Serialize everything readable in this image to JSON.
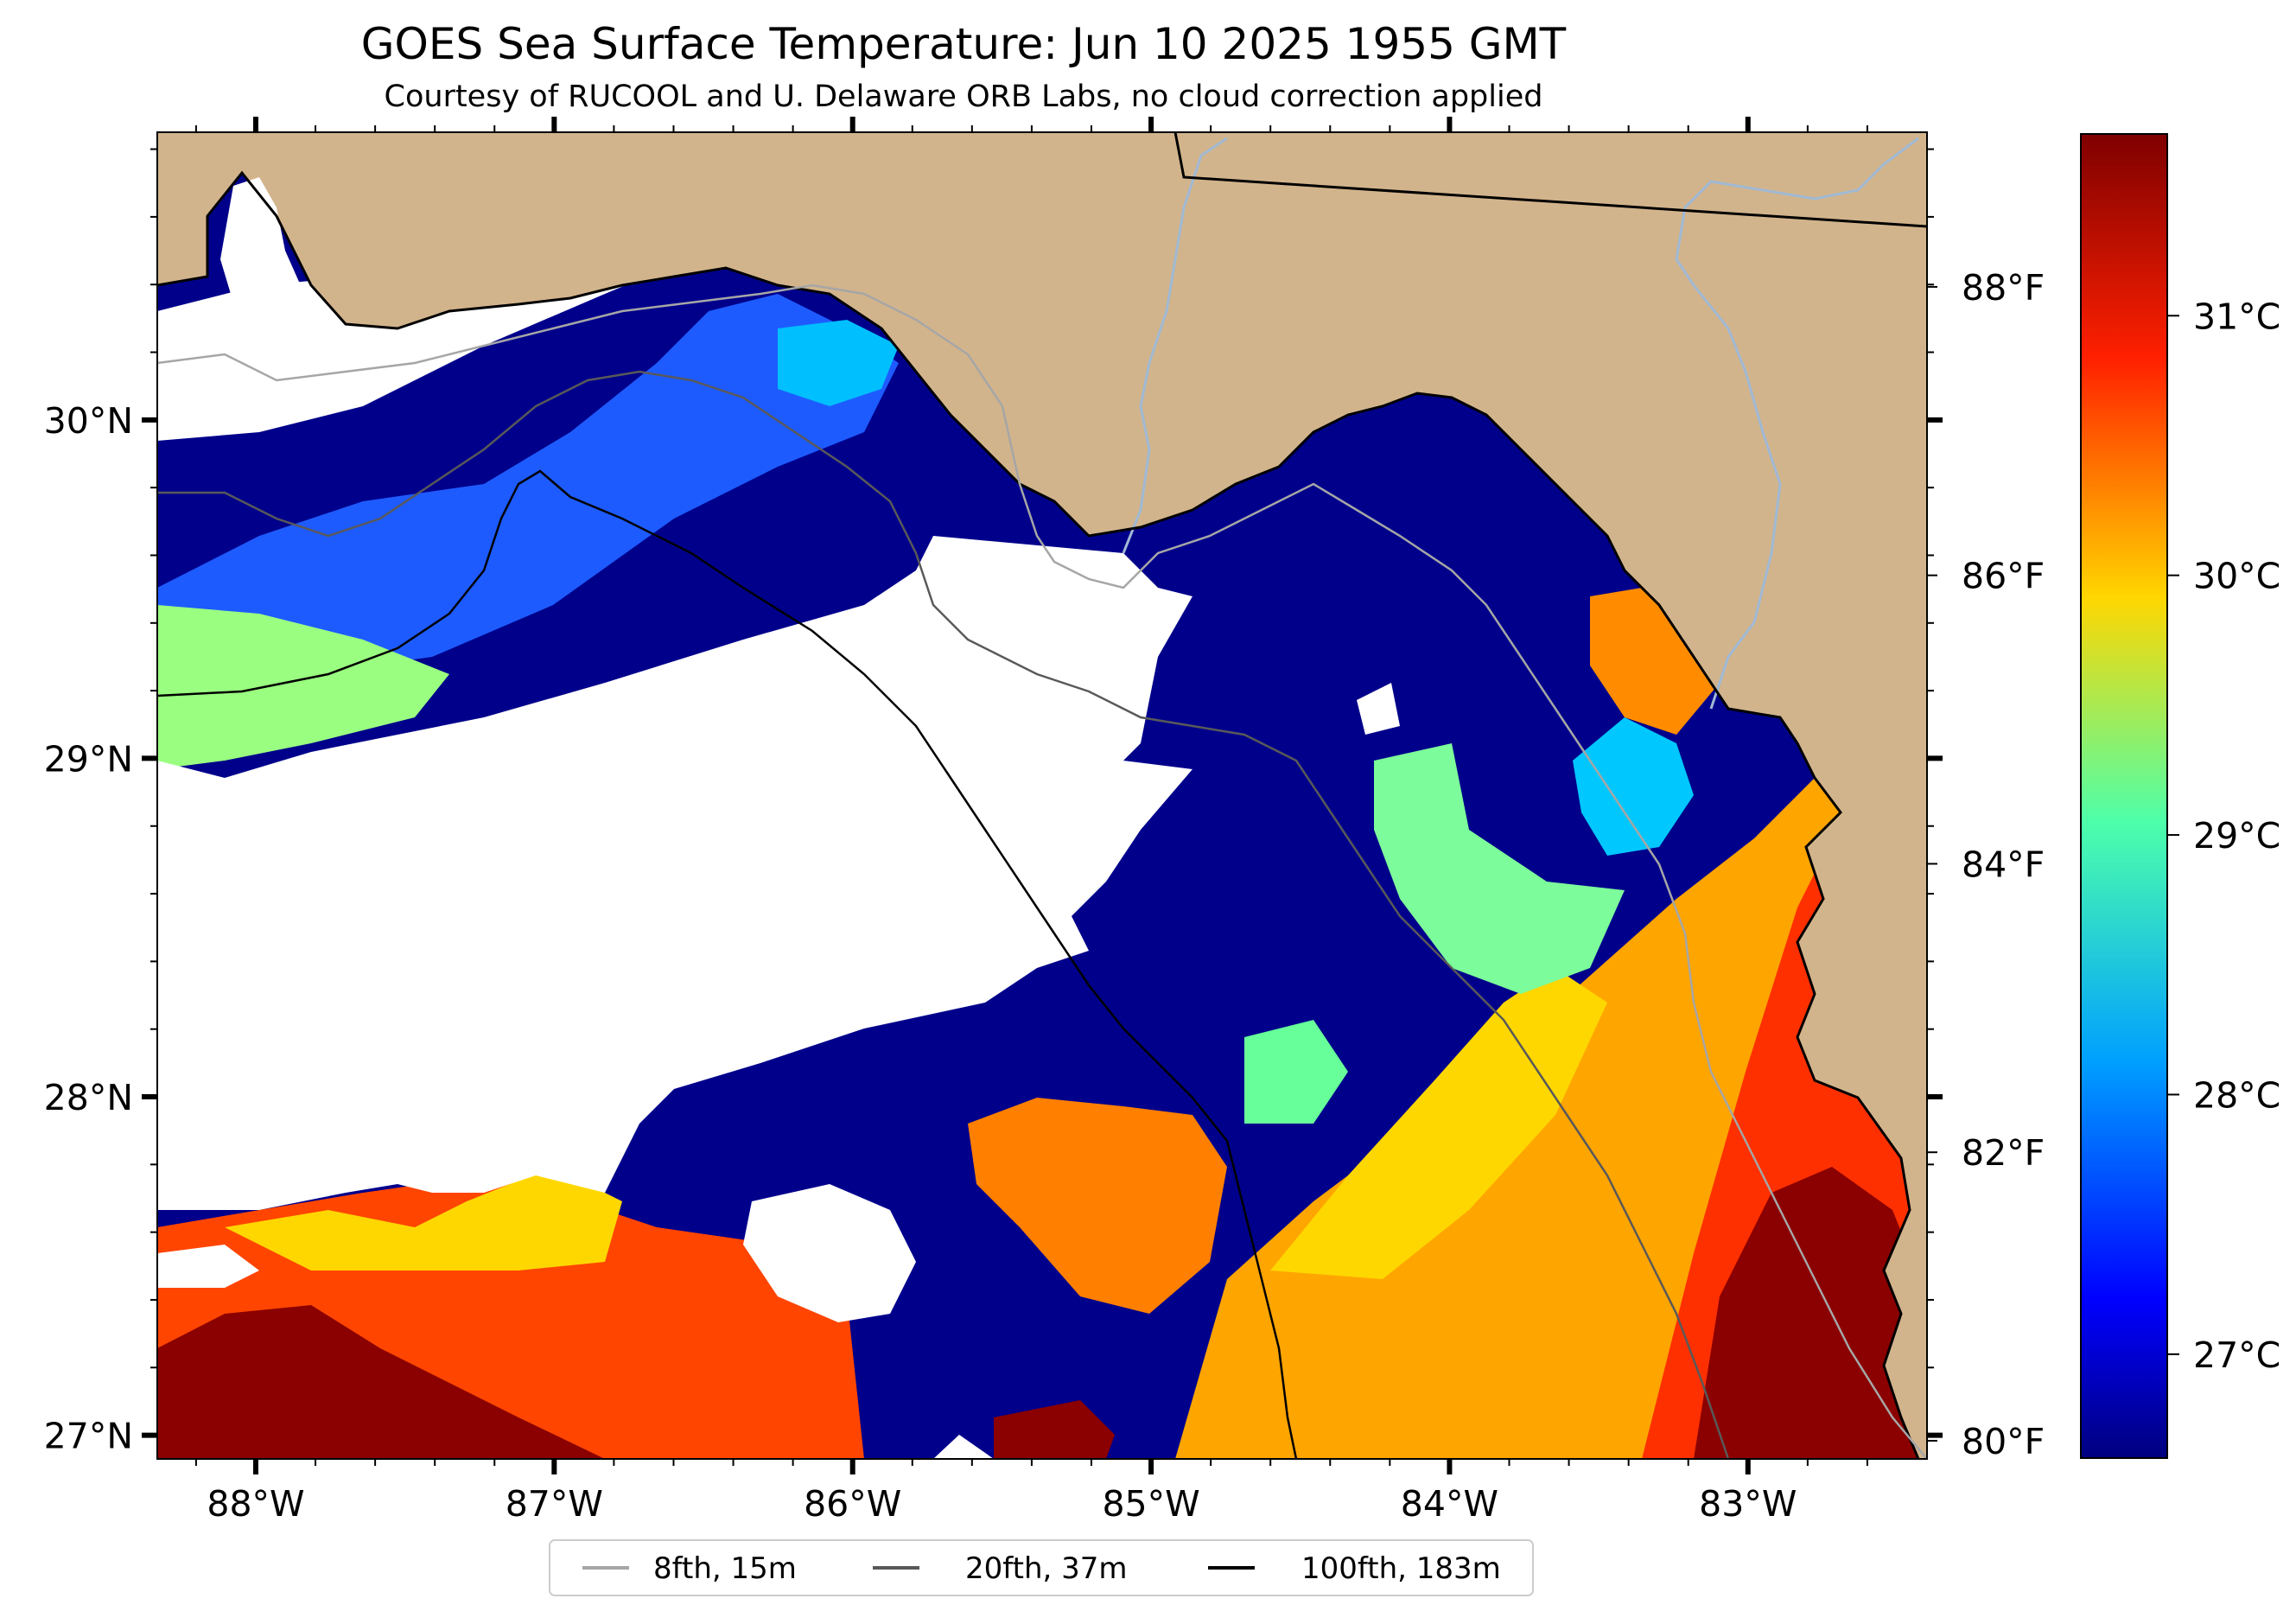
{
  "title": "GOES Sea Surface Temperature: Jun 10 2025 1955 GMT",
  "subtitle": "Courtesy of RUCOOL and U. Delaware ORB Labs, no cloud correction applied",
  "map": {
    "lon_range": [
      -88.33,
      -82.4
    ],
    "lat_range": [
      26.93,
      30.85
    ],
    "lon_labels": [
      {
        "lon": -88,
        "text": "88°W"
      },
      {
        "lon": -87,
        "text": "87°W"
      },
      {
        "lon": -86,
        "text": "86°W"
      },
      {
        "lon": -85,
        "text": "85°W"
      },
      {
        "lon": -84,
        "text": "84°W"
      },
      {
        "lon": -83,
        "text": "83°W"
      }
    ],
    "lat_labels": [
      {
        "lat": 30,
        "text": "30°N"
      },
      {
        "lat": 29,
        "text": "29°N"
      },
      {
        "lat": 28,
        "text": "28°N"
      },
      {
        "lat": 27,
        "text": "27°N"
      }
    ],
    "colors": {
      "land": "#d2b48c",
      "cloud": "#ffffff",
      "cold": "#00008b",
      "coast": "#000000",
      "river": "#a0b9d4"
    }
  },
  "colorbar": {
    "colors": [
      "#7f0000",
      "#ff2000",
      "#ffd600",
      "#4dffaa",
      "#00a0ff",
      "#0000ff",
      "#00007f"
    ],
    "celsius_labels": [
      {
        "value": 31,
        "text": "31°C"
      },
      {
        "value": 30,
        "text": "30°C"
      },
      {
        "value": 29,
        "text": "29°C"
      },
      {
        "value": 28,
        "text": "28°C"
      },
      {
        "value": 27,
        "text": "27°C"
      }
    ],
    "fahrenheit_labels": [
      {
        "value": 88,
        "text": "88°F"
      },
      {
        "value": 86,
        "text": "86°F"
      },
      {
        "value": 84,
        "text": "84°F"
      },
      {
        "value": 82,
        "text": "82°F"
      },
      {
        "value": 80,
        "text": "80°F"
      }
    ]
  },
  "legend": {
    "items": [
      {
        "label": "8fth, 15m",
        "color": "#a6a6a6"
      },
      {
        "label": "20fth, 37m",
        "color": "#595959"
      },
      {
        "label": "100fth, 183m",
        "color": "#000000"
      }
    ]
  }
}
